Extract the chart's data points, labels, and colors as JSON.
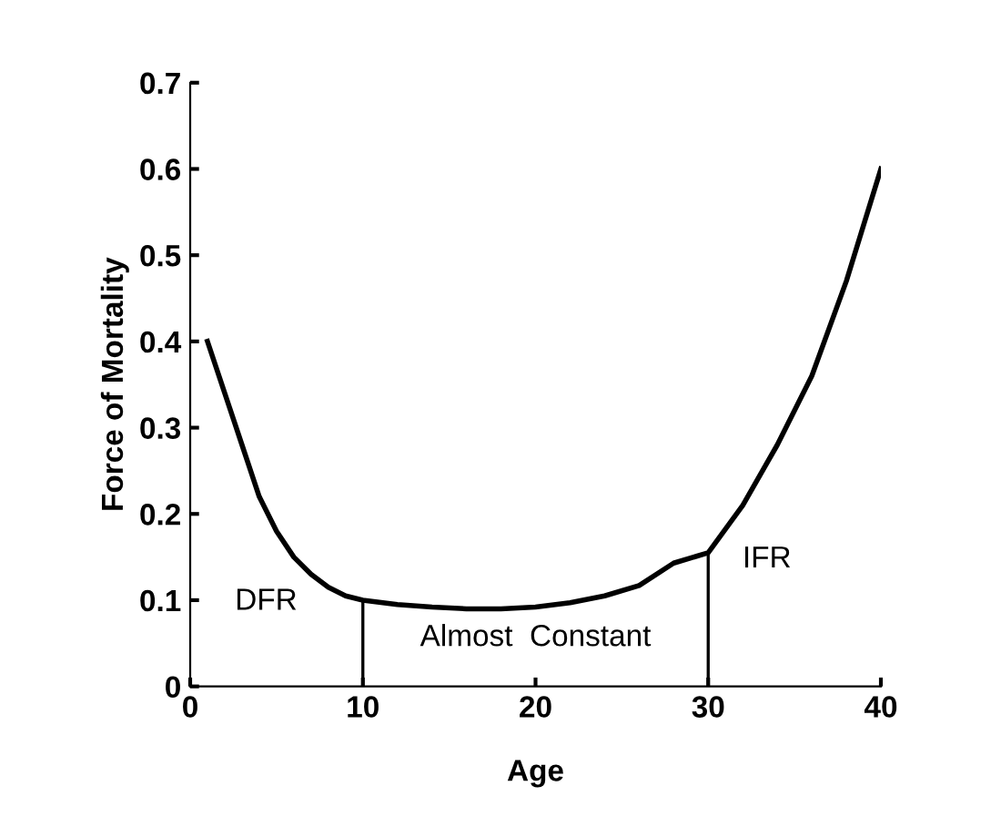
{
  "chart_data": {
    "type": "line",
    "xlabel": "Age",
    "ylabel": "Force of Mortality",
    "xlim": [
      0,
      40
    ],
    "ylim": [
      0,
      0.7
    ],
    "xticks": [
      0,
      10,
      20,
      30,
      40
    ],
    "yticks": [
      0,
      0.1,
      0.2,
      0.3,
      0.4,
      0.5,
      0.6,
      0.7
    ],
    "grid": false,
    "legend": false,
    "series": [
      {
        "color": "#000000",
        "x": [
          1,
          2,
          3,
          4,
          5,
          6,
          7,
          8,
          9,
          10,
          12,
          14,
          16,
          18,
          20,
          22,
          24,
          26,
          28,
          30,
          32,
          34,
          36,
          38,
          40
        ],
        "values": [
          0.4,
          0.34,
          0.28,
          0.22,
          0.18,
          0.15,
          0.13,
          0.115,
          0.105,
          0.1,
          0.095,
          0.092,
          0.09,
          0.09,
          0.092,
          0.097,
          0.105,
          0.117,
          0.143,
          0.155,
          0.21,
          0.28,
          0.36,
          0.47,
          0.6
        ]
      }
    ],
    "ref_lines": [
      {
        "axis": "x",
        "value": 10,
        "color": "#000000"
      },
      {
        "axis": "x",
        "value": 30,
        "color": "#000000"
      }
    ],
    "annotations": [
      "DFR",
      "Almost  Constant",
      "IFR"
    ]
  }
}
